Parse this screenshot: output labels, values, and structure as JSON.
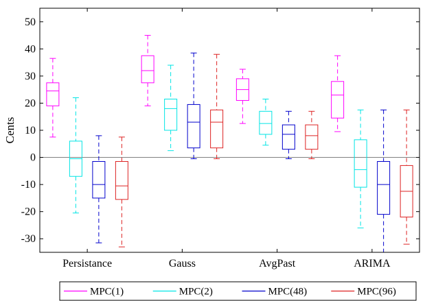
{
  "chart_data": {
    "type": "boxplot",
    "title": "",
    "xlabel": "",
    "ylabel": "Cents",
    "ylim": [
      -35,
      55
    ],
    "yticks": [
      -30,
      -20,
      -10,
      0,
      10,
      20,
      30,
      40,
      50
    ],
    "ytick_labels": [
      "-30",
      "-20",
      "-10",
      "0",
      "10",
      "20",
      "30",
      "40",
      "50"
    ],
    "reference_line": 0,
    "grid": false,
    "legend_position": "bottom",
    "categories": [
      "Persistance",
      "Gauss",
      "AvgPast",
      "ARIMA"
    ],
    "series": [
      {
        "name": "MPC(1)",
        "color": "#ff00ff",
        "boxes": [
          {
            "whisker_low": 7.5,
            "q1": 19,
            "median": 24.5,
            "q3": 27.5,
            "whisker_high": 36.5
          },
          {
            "whisker_low": 19,
            "q1": 27.5,
            "median": 32,
            "q3": 37.5,
            "whisker_high": 45
          },
          {
            "whisker_low": 12.5,
            "q1": 21,
            "median": 25,
            "q3": 29,
            "whisker_high": 32.5
          },
          {
            "whisker_low": 9.5,
            "q1": 14.5,
            "median": 23,
            "q3": 28,
            "whisker_high": 37.5
          }
        ]
      },
      {
        "name": "MPC(2)",
        "color": "#00e5e5",
        "boxes": [
          {
            "whisker_low": -20.5,
            "q1": -7,
            "median": -0.5,
            "q3": 6,
            "whisker_high": 22
          },
          {
            "whisker_low": 2.5,
            "q1": 10,
            "median": 18,
            "q3": 21.5,
            "whisker_high": 34
          },
          {
            "whisker_low": 4.5,
            "q1": 8.5,
            "median": 12.5,
            "q3": 17,
            "whisker_high": 21.5
          },
          {
            "whisker_low": -26,
            "q1": -11,
            "median": -4.5,
            "q3": 6.5,
            "whisker_high": 17.5
          }
        ]
      },
      {
        "name": "MPC(48)",
        "color": "#0000cc",
        "boxes": [
          {
            "whisker_low": -31.5,
            "q1": -15,
            "median": -10,
            "q3": -1.5,
            "whisker_high": 8
          },
          {
            "whisker_low": -0.5,
            "q1": 3.5,
            "median": 13,
            "q3": 19.5,
            "whisker_high": 38.5
          },
          {
            "whisker_low": -0.5,
            "q1": 3,
            "median": 8.5,
            "q3": 12,
            "whisker_high": 17
          },
          {
            "whisker_low": -35,
            "q1": -21,
            "median": -10,
            "q3": -1.5,
            "whisker_high": 17.5
          }
        ]
      },
      {
        "name": "MPC(96)",
        "color": "#dd2222",
        "boxes": [
          {
            "whisker_low": -33,
            "q1": -15.5,
            "median": -10.5,
            "q3": -1.5,
            "whisker_high": 7.5
          },
          {
            "whisker_low": -0.5,
            "q1": 3.5,
            "median": 13,
            "q3": 17.5,
            "whisker_high": 38
          },
          {
            "whisker_low": -0.5,
            "q1": 3,
            "median": 8,
            "q3": 12,
            "whisker_high": 17
          },
          {
            "whisker_low": -32,
            "q1": -22,
            "median": -12.5,
            "q3": -3,
            "whisker_high": 17.5
          }
        ]
      }
    ]
  }
}
